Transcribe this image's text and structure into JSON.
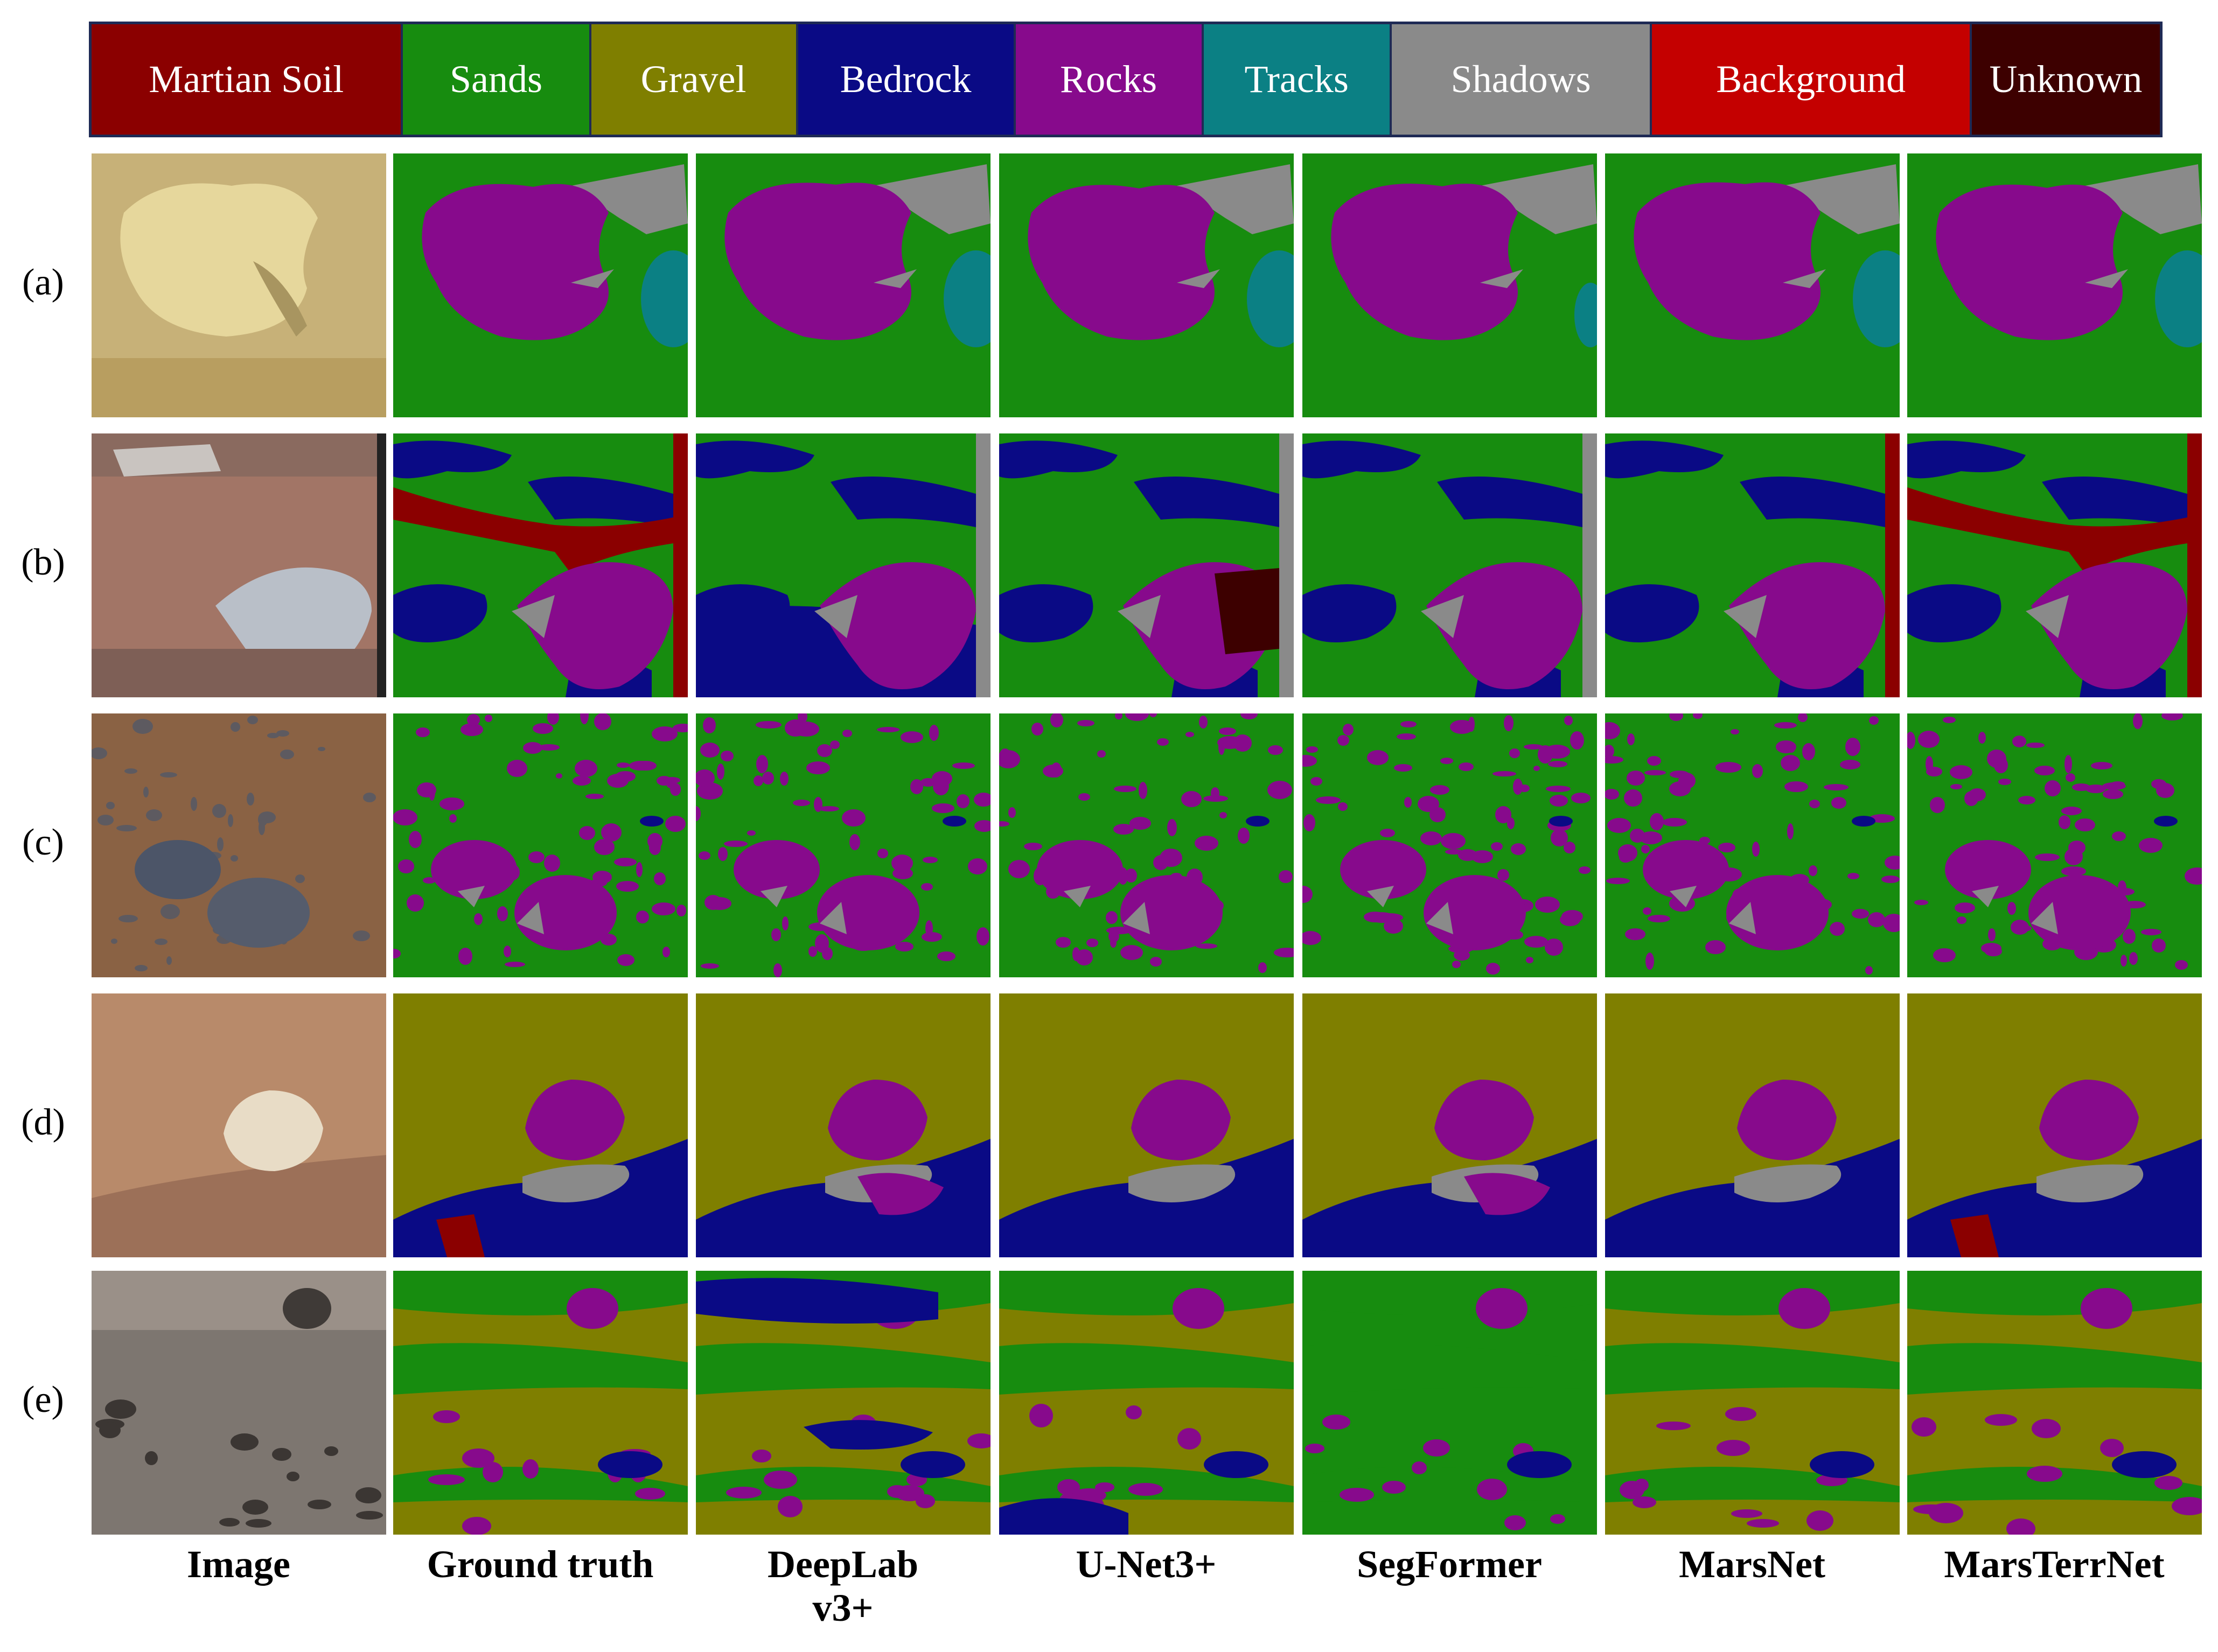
{
  "legend": [
    {
      "name": "Martian Soil",
      "color": "#8b0000"
    },
    {
      "name": "Sands",
      "color": "#178c0f"
    },
    {
      "name": "Gravel",
      "color": "#7f7f00"
    },
    {
      "name": "Bedrock",
      "color": "#0a0a85"
    },
    {
      "name": "Rocks",
      "color": "#870a8c"
    },
    {
      "name": "Tracks",
      "color": "#0b8084"
    },
    {
      "name": "Shadows",
      "color": "#8a8a8a"
    },
    {
      "name": "Background",
      "color": "#c40000"
    },
    {
      "name": "Unknown",
      "color": "#3d0000"
    }
  ],
  "rows": [
    {
      "label": "(a)"
    },
    {
      "label": "(b)"
    },
    {
      "label": "(c)"
    },
    {
      "label": "(d)"
    },
    {
      "label": "(e)"
    }
  ],
  "columns": [
    {
      "label": "Image"
    },
    {
      "label": "Ground truth"
    },
    {
      "label": "DeepLab\nv3+"
    },
    {
      "label": "U-Net3+"
    },
    {
      "label": "SegFormer"
    },
    {
      "label": "MarsNet"
    },
    {
      "label": "MarsTerrNet"
    }
  ]
}
